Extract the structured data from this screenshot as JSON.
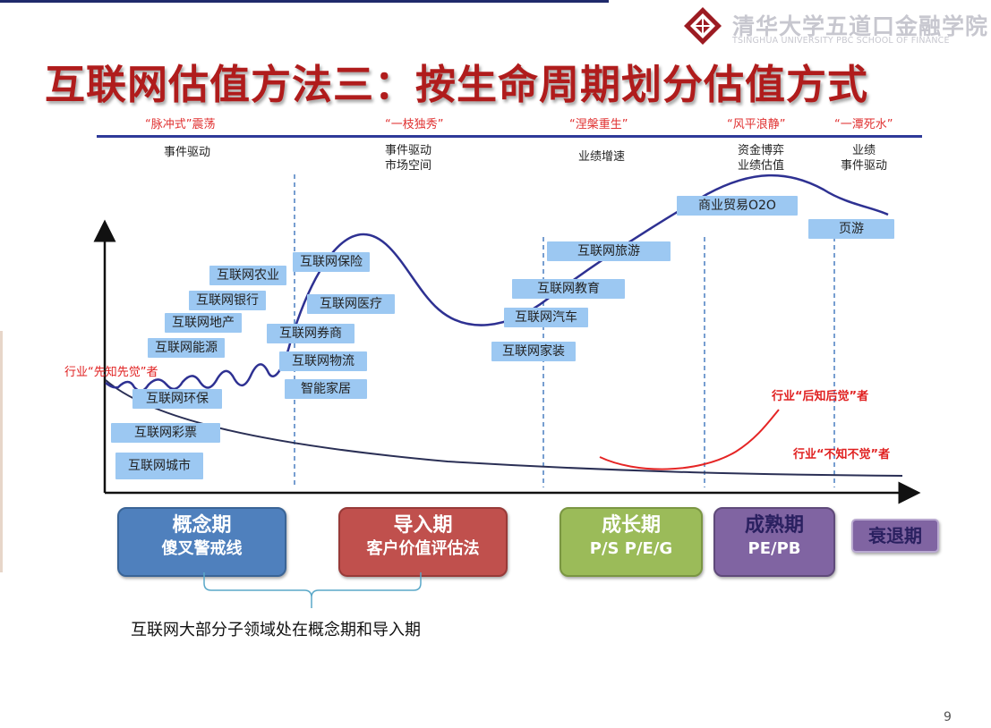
{
  "title": "互联网估值方法三：按生命周期划分估值方式",
  "logo": {
    "cn": "清华大学五道口金融学院",
    "en": "TSINGHUA UNIVERSITY PBC SCHOOL OF FINANCE"
  },
  "phases": [
    "“脉冲式”震荡",
    "“一枝独秀”",
    "“涅槃重生”",
    "“风平浪静”",
    "“一潭死水”"
  ],
  "drivers": [
    [
      "事件驱动"
    ],
    [
      "事件驱动",
      "市场空间"
    ],
    [
      "业绩增速"
    ],
    [
      "资金博弈",
      "业绩估值"
    ],
    [
      "业绩",
      "事件驱动"
    ]
  ],
  "labels": [
    "互联网农业",
    "互联网银行",
    "互联网地产",
    "互联网能源",
    "互联网环保",
    "互联网彩票",
    "互联网城市",
    "互联网保险",
    "互联网医疗",
    "互联网券商",
    "互联网物流",
    "智能家居",
    "互联网旅游",
    "互联网教育",
    "互联网汽车",
    "互联网家装",
    "商业贸易O2O",
    "页游"
  ],
  "annotations": {
    "early": "行业“先知先觉”者",
    "late": "行业“后知后觉”者",
    "unaware": "行业“不知不觉”者"
  },
  "stages": [
    {
      "name": "概念期",
      "method": "傻叉警戒线",
      "color": "#4f80bd"
    },
    {
      "name": "导入期",
      "method": "客户价值评估法",
      "color": "#c0504d"
    },
    {
      "name": "成长期",
      "method": "P/S  P/E/G",
      "color": "#9bbb59"
    },
    {
      "name": "成熟期",
      "method": "PE/PB",
      "color": "#8064a2"
    },
    {
      "name": "衰退期",
      "method": "",
      "color": "#8064a2"
    }
  ],
  "summary": "互联网大部分子领域处在概念期和导入期",
  "page_number": "9",
  "colors": {
    "title": "#b01c1c",
    "curve": "#2e3192",
    "accent_red": "#e02020",
    "label_bg": "#9cc8f2"
  }
}
